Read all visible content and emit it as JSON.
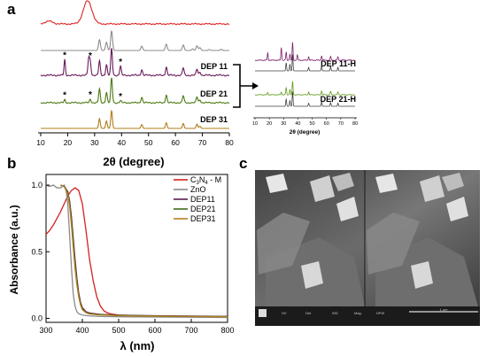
{
  "panel_labels": {
    "a": "a",
    "b": "b",
    "c": "c"
  },
  "chart_data": [
    {
      "id": "xrd-main",
      "type": "line",
      "xlabel": "2θ (degree)",
      "xlim": [
        10,
        80
      ],
      "xticks": [
        10,
        20,
        30,
        40,
        50,
        60,
        70,
        80
      ],
      "y_axis": "none",
      "peak_marker": "*",
      "series": [
        {
          "name": "",
          "color": "#e02020",
          "kind": "broad",
          "peaks": [
            [
              13.0,
              0.12,
              1.4
            ],
            [
              27.4,
              1.0,
              1.6
            ]
          ]
        },
        {
          "name": "",
          "color": "#8c8c8c",
          "kind": "sharp",
          "peaks": [
            [
              31.8,
              0.55,
              0.35
            ],
            [
              34.4,
              0.42,
              0.35
            ],
            [
              36.3,
              1.0,
              0.35
            ],
            [
              47.5,
              0.22,
              0.35
            ],
            [
              56.6,
              0.32,
              0.35
            ],
            [
              62.9,
              0.28,
              0.35
            ],
            [
              66.4,
              0.08,
              0.35
            ],
            [
              68.0,
              0.24,
              0.35
            ],
            [
              69.1,
              0.14,
              0.35
            ],
            [
              72.6,
              0.05,
              0.35
            ],
            [
              77.0,
              0.06,
              0.35
            ]
          ]
        },
        {
          "name": "DEP 11",
          "color": "#6a1a5a",
          "kind": "mixed",
          "peaks": [
            [
              18.9,
              0.55,
              0.25
            ],
            [
              27.8,
              0.58,
              0.3
            ],
            [
              28.4,
              0.45,
              0.3
            ],
            [
              31.8,
              0.5,
              0.3
            ],
            [
              34.4,
              0.38,
              0.3
            ],
            [
              36.3,
              0.95,
              0.3
            ],
            [
              39.6,
              0.32,
              0.3
            ],
            [
              47.5,
              0.2,
              0.3
            ],
            [
              56.6,
              0.3,
              0.3
            ],
            [
              62.9,
              0.26,
              0.3
            ],
            [
              68.0,
              0.22,
              0.3
            ],
            [
              69.1,
              0.12,
              0.3
            ]
          ],
          "asterisks_at": [
            18.9,
            28.4,
            39.6
          ]
        },
        {
          "name": "DEP 21",
          "color": "#4c7a12",
          "kind": "mixed",
          "peaks": [
            [
              18.9,
              0.12,
              0.25
            ],
            [
              28.4,
              0.14,
              0.3
            ],
            [
              31.8,
              0.55,
              0.3
            ],
            [
              34.4,
              0.42,
              0.3
            ],
            [
              36.3,
              1.0,
              0.3
            ],
            [
              39.6,
              0.08,
              0.3
            ],
            [
              47.5,
              0.22,
              0.3
            ],
            [
              56.6,
              0.32,
              0.3
            ],
            [
              62.9,
              0.28,
              0.3
            ],
            [
              68.0,
              0.24,
              0.3
            ],
            [
              69.1,
              0.12,
              0.3
            ]
          ],
          "asterisks_at": [
            18.9,
            28.4,
            39.6
          ]
        },
        {
          "name": "DEP 31",
          "color": "#b07d1a",
          "kind": "sharp",
          "peaks": [
            [
              31.8,
              0.55,
              0.3
            ],
            [
              34.4,
              0.42,
              0.3
            ],
            [
              36.3,
              1.0,
              0.3
            ],
            [
              47.5,
              0.22,
              0.3
            ],
            [
              56.6,
              0.32,
              0.3
            ],
            [
              62.9,
              0.28,
              0.3
            ],
            [
              68.0,
              0.24,
              0.3
            ],
            [
              69.1,
              0.12,
              0.3
            ]
          ]
        }
      ]
    },
    {
      "id": "xrd-inset",
      "type": "line",
      "xlabel": "2θ (degree)",
      "xlim": [
        10,
        80
      ],
      "xticks": [
        10,
        20,
        30,
        40,
        50,
        60,
        70,
        80
      ],
      "series": [
        {
          "name": "",
          "color": "#7a1e6a",
          "kind": "mixed",
          "peaks": [
            [
              18.9,
              0.4,
              0.3
            ],
            [
              28.4,
              0.7,
              0.3
            ],
            [
              31.8,
              0.45,
              0.3
            ],
            [
              34.4,
              0.35,
              0.3
            ],
            [
              36.3,
              1.0,
              0.3
            ],
            [
              39.6,
              0.3,
              0.3
            ],
            [
              47.5,
              0.2,
              0.3
            ],
            [
              56.6,
              0.25,
              0.3
            ],
            [
              62.9,
              0.22,
              0.3
            ],
            [
              68.0,
              0.2,
              0.3
            ]
          ]
        },
        {
          "name": "DEP 11-H",
          "color": "#404040",
          "kind": "sharp",
          "peaks": [
            [
              31.8,
              0.5,
              0.3
            ],
            [
              34.4,
              0.4,
              0.3
            ],
            [
              36.3,
              1.0,
              0.3
            ],
            [
              47.5,
              0.22,
              0.3
            ],
            [
              56.6,
              0.3,
              0.3
            ],
            [
              62.9,
              0.26,
              0.3
            ],
            [
              68.0,
              0.22,
              0.3
            ]
          ]
        },
        {
          "name": "",
          "color": "#5f9a1a",
          "kind": "mixed",
          "peaks": [
            [
              18.9,
              0.15,
              0.3
            ],
            [
              28.4,
              0.2,
              0.3
            ],
            [
              31.8,
              0.5,
              0.3
            ],
            [
              34.4,
              0.4,
              0.3
            ],
            [
              36.3,
              1.0,
              0.3
            ],
            [
              47.5,
              0.22,
              0.3
            ],
            [
              56.6,
              0.3,
              0.3
            ],
            [
              62.9,
              0.26,
              0.3
            ],
            [
              68.0,
              0.22,
              0.3
            ]
          ]
        },
        {
          "name": "DEP 21-H",
          "color": "#404040",
          "kind": "sharp",
          "peaks": [
            [
              31.8,
              0.5,
              0.3
            ],
            [
              34.4,
              0.4,
              0.3
            ],
            [
              36.3,
              1.0,
              0.3
            ],
            [
              47.5,
              0.22,
              0.3
            ],
            [
              56.6,
              0.3,
              0.3
            ],
            [
              62.9,
              0.26,
              0.3
            ],
            [
              68.0,
              0.22,
              0.3
            ]
          ]
        }
      ]
    },
    {
      "id": "uvvis",
      "type": "line",
      "xlabel": "λ (nm)",
      "ylabel": "Absorbance (a.u.)",
      "xlim": [
        300,
        800
      ],
      "ylim": [
        -0.03,
        1.08
      ],
      "xticks": [
        300,
        400,
        500,
        600,
        700,
        800
      ],
      "yticks": [
        0.0,
        0.5,
        1.0
      ],
      "ytick_labels": [
        "0.0",
        "0.5",
        "1.0"
      ],
      "legend": [
        {
          "label_main": "C",
          "sub1": "3",
          "mid": "N",
          "sub2": "4",
          "tail": " - M",
          "color": "#d42020"
        },
        {
          "label": "ZnO",
          "color": "#8a8a8a"
        },
        {
          "label": "DEP11",
          "color": "#5a1a50"
        },
        {
          "label": "DEP21",
          "color": "#3f6a18"
        },
        {
          "label": "DEP31",
          "color": "#b08020"
        }
      ],
      "series": [
        {
          "name": "C3N4 - M",
          "color": "#d42020",
          "x": [
            300,
            310,
            320,
            330,
            340,
            350,
            360,
            370,
            380,
            390,
            400,
            410,
            420,
            430,
            440,
            450,
            460,
            470,
            480,
            500,
            550,
            600,
            650,
            700,
            750,
            800
          ],
          "y": [
            0.63,
            0.66,
            0.7,
            0.75,
            0.8,
            0.86,
            0.92,
            0.96,
            0.98,
            0.96,
            0.86,
            0.66,
            0.44,
            0.28,
            0.16,
            0.09,
            0.055,
            0.04,
            0.032,
            0.025,
            0.02,
            0.016,
            0.013,
            0.011,
            0.01,
            0.009
          ]
        },
        {
          "name": "ZnO",
          "color": "#8a8a8a",
          "x": [
            300,
            310,
            320,
            330,
            340,
            345,
            350,
            355,
            360,
            365,
            370,
            375,
            380,
            385,
            390,
            400,
            420,
            450,
            500,
            600,
            700,
            800
          ],
          "y": [
            1.0,
            0.99,
            1.0,
            0.98,
            0.98,
            0.99,
            1.0,
            0.97,
            0.85,
            0.62,
            0.38,
            0.18,
            0.09,
            0.05,
            0.035,
            0.025,
            0.018,
            0.014,
            0.012,
            0.01,
            0.008,
            0.007
          ]
        },
        {
          "name": "DEP11",
          "color": "#5a1a50",
          "x": [
            340,
            350,
            360,
            365,
            370,
            375,
            380,
            385,
            390,
            395,
            400,
            410,
            420,
            450,
            500,
            600,
            700,
            800
          ],
          "y": [
            1.0,
            0.99,
            0.95,
            0.88,
            0.76,
            0.6,
            0.44,
            0.3,
            0.19,
            0.12,
            0.08,
            0.05,
            0.04,
            0.03,
            0.024,
            0.02,
            0.017,
            0.015
          ]
        },
        {
          "name": "DEP21",
          "color": "#3f6a18",
          "x": [
            340,
            350,
            360,
            365,
            370,
            375,
            380,
            385,
            390,
            395,
            400,
            410,
            420,
            450,
            500,
            600,
            700,
            800
          ],
          "y": [
            1.0,
            0.99,
            0.94,
            0.86,
            0.72,
            0.56,
            0.4,
            0.27,
            0.17,
            0.11,
            0.07,
            0.045,
            0.035,
            0.028,
            0.022,
            0.018,
            0.015,
            0.013
          ]
        },
        {
          "name": "DEP31",
          "color": "#b08020",
          "x": [
            340,
            350,
            360,
            365,
            370,
            375,
            380,
            385,
            390,
            395,
            400,
            410,
            420,
            450,
            500,
            600,
            700,
            800
          ],
          "y": [
            1.0,
            0.99,
            0.93,
            0.84,
            0.7,
            0.53,
            0.37,
            0.25,
            0.16,
            0.1,
            0.065,
            0.042,
            0.032,
            0.025,
            0.02,
            0.016,
            0.014,
            0.012
          ]
        }
      ]
    }
  ],
  "sem": {
    "image_description": "",
    "scale_bar_label": "1 μm",
    "footer_fields": [
      "HV",
      "Det",
      "WD",
      "Mag",
      "HFW",
      "1 μm"
    ]
  }
}
